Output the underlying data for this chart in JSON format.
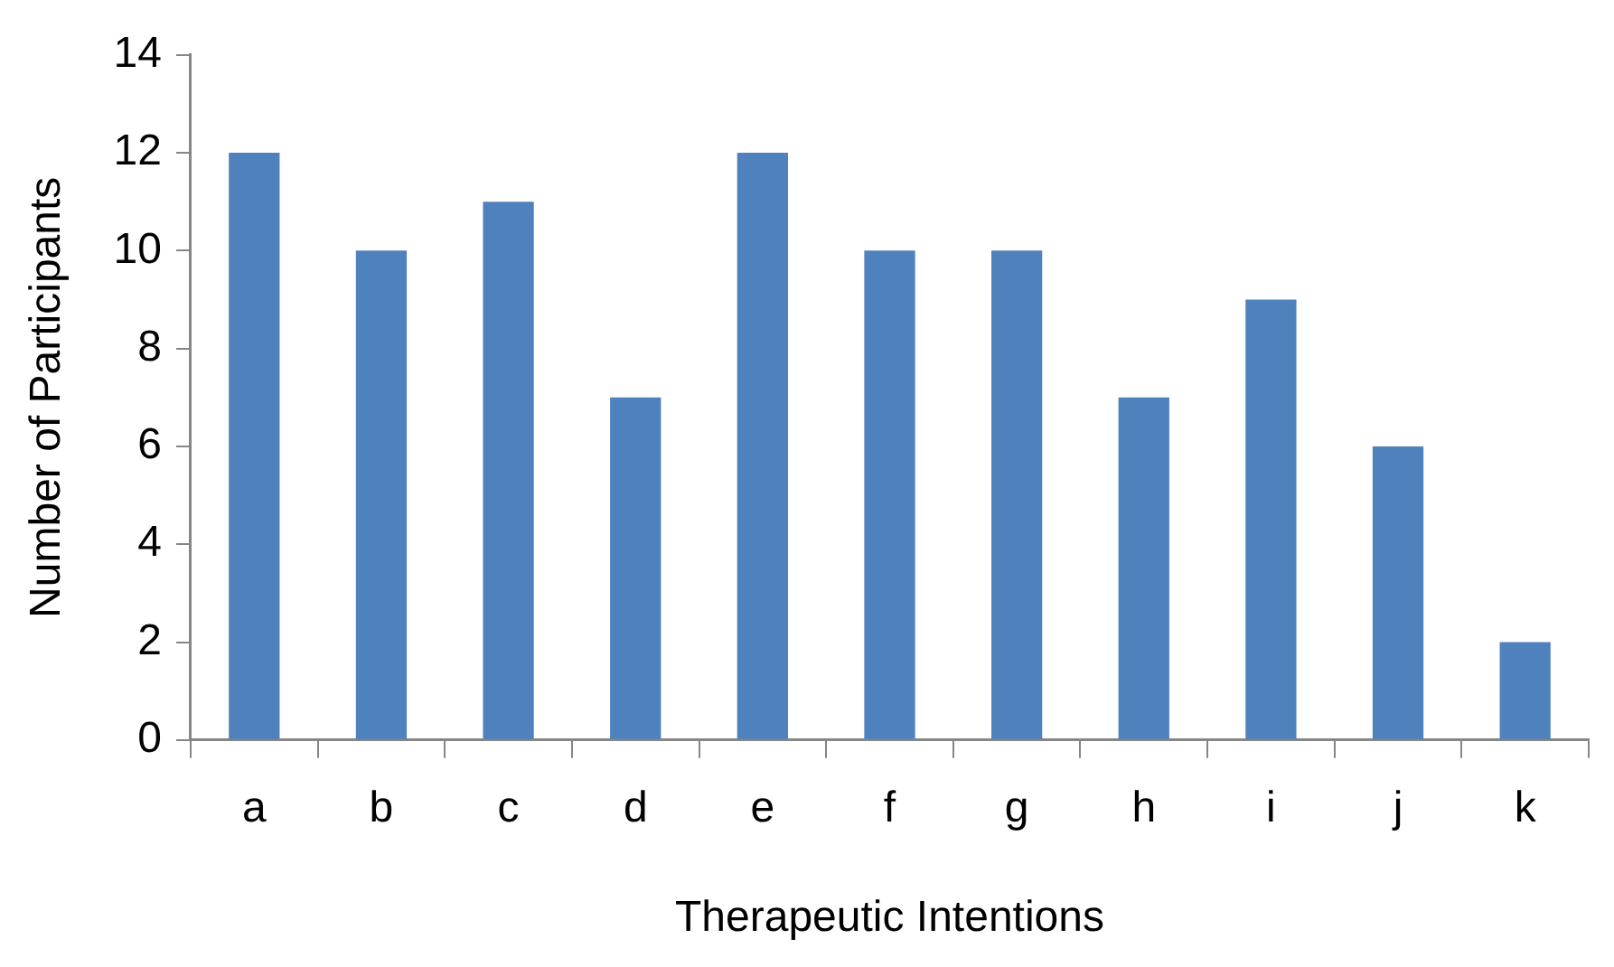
{
  "chart_data": {
    "type": "bar",
    "xlabel": "Therapeutic Intentions",
    "ylabel": "Number of Participants",
    "categories": [
      "a",
      "b",
      "c",
      "d",
      "e",
      "f",
      "g",
      "h",
      "i",
      "j",
      "k"
    ],
    "values": [
      12,
      10,
      11,
      7,
      12,
      10,
      10,
      7,
      9,
      6,
      2
    ],
    "color": "#4f81bd",
    "ylim": [
      0,
      14
    ],
    "yticks": [
      0,
      2,
      4,
      6,
      8,
      10,
      12,
      14
    ],
    "grid": false,
    "legend": false
  }
}
